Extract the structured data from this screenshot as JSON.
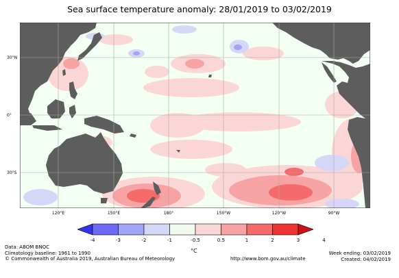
{
  "title": "Sea surface temperature anomaly: 28/01/2019 to 03/02/2019",
  "map": {
    "lat_labels": [
      "30°N",
      "0°",
      "30°S"
    ],
    "lon_labels": [
      "120°E",
      "150°E",
      "180°",
      "150°W",
      "120°W",
      "90°W"
    ],
    "colors": {
      "land": "#5d5d5d",
      "ocean_neutral": "#f3fff3",
      "grid": "#a8a8a8"
    }
  },
  "colorbar": {
    "ticks": [
      "-4",
      "-3",
      "-2",
      "-1",
      "-0.5",
      "0.5",
      "1",
      "2",
      "3",
      "4"
    ],
    "colors": [
      "#3333ee",
      "#6b6bf5",
      "#a3a3f7",
      "#d6d6f7",
      "#f0fbf0",
      "#fbd6d6",
      "#f7a3a3",
      "#f56b6b",
      "#ee3333",
      "#c81414"
    ],
    "unit": "°C"
  },
  "footer": {
    "data_line": "Data: ABOM BNOC",
    "baseline_line": "Climatology baseline: 1961 to 1990",
    "copyright_line": "© Commonwealth of Australia 2019, Australian Bureau of Meteorology",
    "url": "http://www.bom.gov.au/climate",
    "week_ending": "Week ending: 03/02/2019",
    "created": "Created: 04/02/2019"
  }
}
